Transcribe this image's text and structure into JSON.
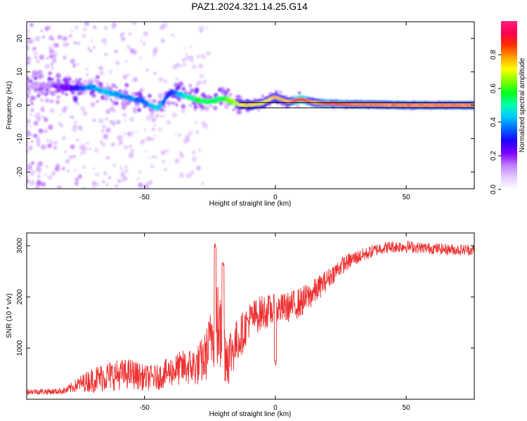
{
  "title": "PAZ1.2024.321.14.25.G14",
  "chart_data": [
    {
      "type": "heatmap",
      "xlabel": "Height of straight line (km)",
      "ylabel": "Frequency (Hz)",
      "xlim": [
        -95,
        76
      ],
      "ylim": [
        -25,
        25
      ],
      "xticks": [
        -50,
        0,
        50
      ],
      "yticks": [
        -20,
        -10,
        0,
        10,
        20
      ],
      "colorbar": {
        "label": "Normalized spectral amplitude",
        "range": [
          0,
          1
        ],
        "ticks": [
          "0.0",
          "0.2",
          "0.4",
          "0.6",
          "0.8"
        ],
        "colors": [
          "#ffffff",
          "#e6ccff",
          "#c080ff",
          "#8000ff",
          "#2000ff",
          "#0060ff",
          "#00c8ff",
          "#00ffb0",
          "#00ff20",
          "#80ff00",
          "#ffff00",
          "#ffa000",
          "#ff3000",
          "#ff0050",
          "#ff2080"
        ]
      },
      "ridge": {
        "x": [
          -95,
          -85,
          -75,
          -70,
          -65,
          -60,
          -55,
          -50,
          -45,
          -40,
          -35,
          -30,
          -25,
          -20,
          -15,
          -10,
          -5,
          0,
          5,
          10,
          15,
          20,
          30,
          40,
          50,
          60,
          76
        ],
        "frequency": [
          6,
          6,
          5,
          5.5,
          4,
          3,
          2,
          1,
          -1,
          4,
          3,
          1.5,
          1,
          2,
          0.5,
          0,
          0.5,
          2.5,
          1,
          1.8,
          0.8,
          0.5,
          0.3,
          0.2,
          0,
          0,
          0
        ],
        "amplitude": [
          0.1,
          0.15,
          0.3,
          0.4,
          0.45,
          0.4,
          0.4,
          0.35,
          0.45,
          0.3,
          0.45,
          0.55,
          0.55,
          0.55,
          0.7,
          0.75,
          0.7,
          0.75,
          0.75,
          0.95,
          0.75,
          0.85,
          0.8,
          0.8,
          0.8,
          0.8,
          0.8
        ]
      }
    },
    {
      "type": "line",
      "xlabel": "Height of straight line (km)",
      "ylabel": "SNR (10 * v/v)",
      "xlim": [
        -95,
        76
      ],
      "ylim": [
        0,
        3250
      ],
      "xticks": [
        -50,
        0,
        50
      ],
      "yticks": [
        1000,
        2000,
        3000
      ],
      "color": "#ee3030",
      "envelope": {
        "x": [
          -95,
          -90,
          -85,
          -80,
          -75,
          -70,
          -65,
          -60,
          -55,
          -50,
          -45,
          -40,
          -35,
          -30,
          -27,
          -25,
          -23,
          -20,
          -18,
          -15,
          -12,
          -10,
          -5,
          0,
          5,
          10,
          15,
          20,
          25,
          30,
          35,
          40,
          45,
          50,
          55,
          60,
          65,
          70,
          76
        ],
        "mean": [
          150,
          150,
          150,
          170,
          300,
          380,
          450,
          480,
          500,
          420,
          430,
          550,
          620,
          650,
          800,
          1100,
          1600,
          1050,
          850,
          1100,
          1350,
          1550,
          1700,
          1750,
          1800,
          1900,
          2100,
          2350,
          2600,
          2750,
          2850,
          2950,
          2980,
          2990,
          2960,
          2950,
          2930,
          2920,
          2920
        ],
        "spread": [
          60,
          60,
          60,
          70,
          150,
          250,
          300,
          300,
          300,
          250,
          250,
          300,
          350,
          400,
          500,
          600,
          1000,
          700,
          600,
          450,
          400,
          350,
          350,
          300,
          300,
          300,
          260,
          200,
          180,
          150,
          130,
          120,
          120,
          120,
          110,
          110,
          110,
          110,
          110
        ]
      },
      "features": [
        {
          "x": -23,
          "y": 3050
        },
        {
          "x": -20,
          "y": 2700
        },
        {
          "x": 0,
          "y": 780
        }
      ]
    }
  ]
}
